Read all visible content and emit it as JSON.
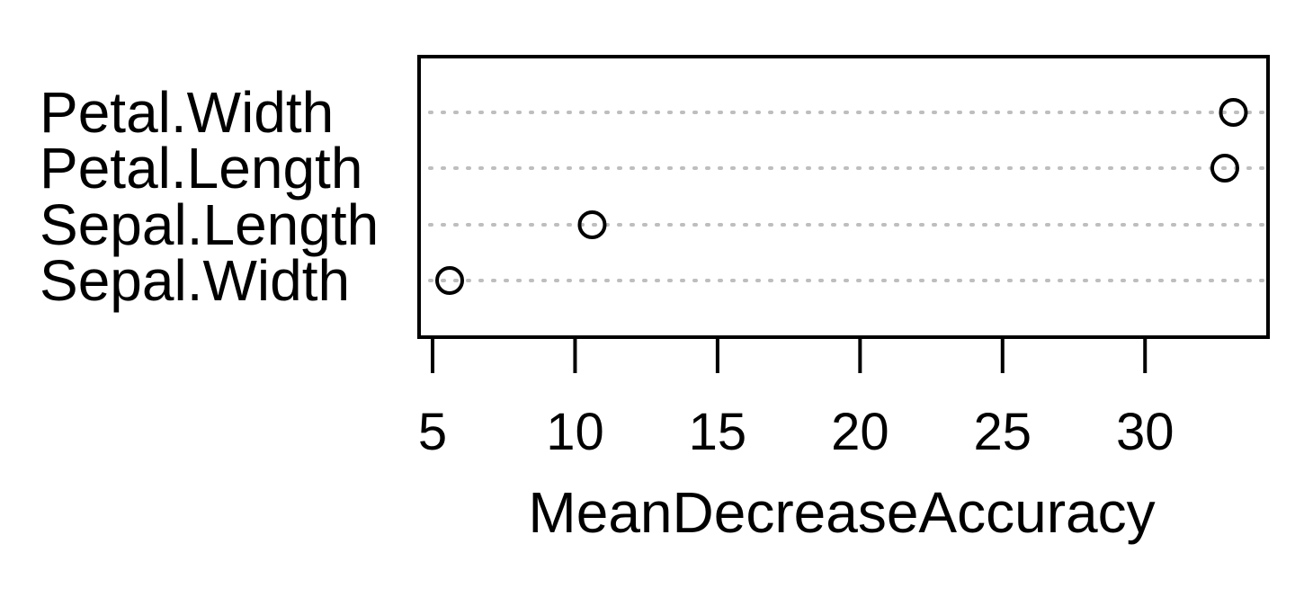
{
  "chart_data": {
    "type": "scatter",
    "categories": [
      "Petal.Width",
      "Petal.Length",
      "Sepal.Length",
      "Sepal.Width"
    ],
    "values": [
      33.1,
      32.8,
      10.6,
      5.6
    ],
    "xlabel": "MeanDecreaseAccuracy",
    "ylabel": "",
    "xlim": [
      5,
      34
    ],
    "xticks": [
      5,
      10,
      15,
      20,
      25,
      30
    ],
    "grid": "dotted-horizontal",
    "marker": "open-circle",
    "colors": {
      "points": "#000000",
      "grid": "#bebebe",
      "frame": "#000000"
    }
  }
}
